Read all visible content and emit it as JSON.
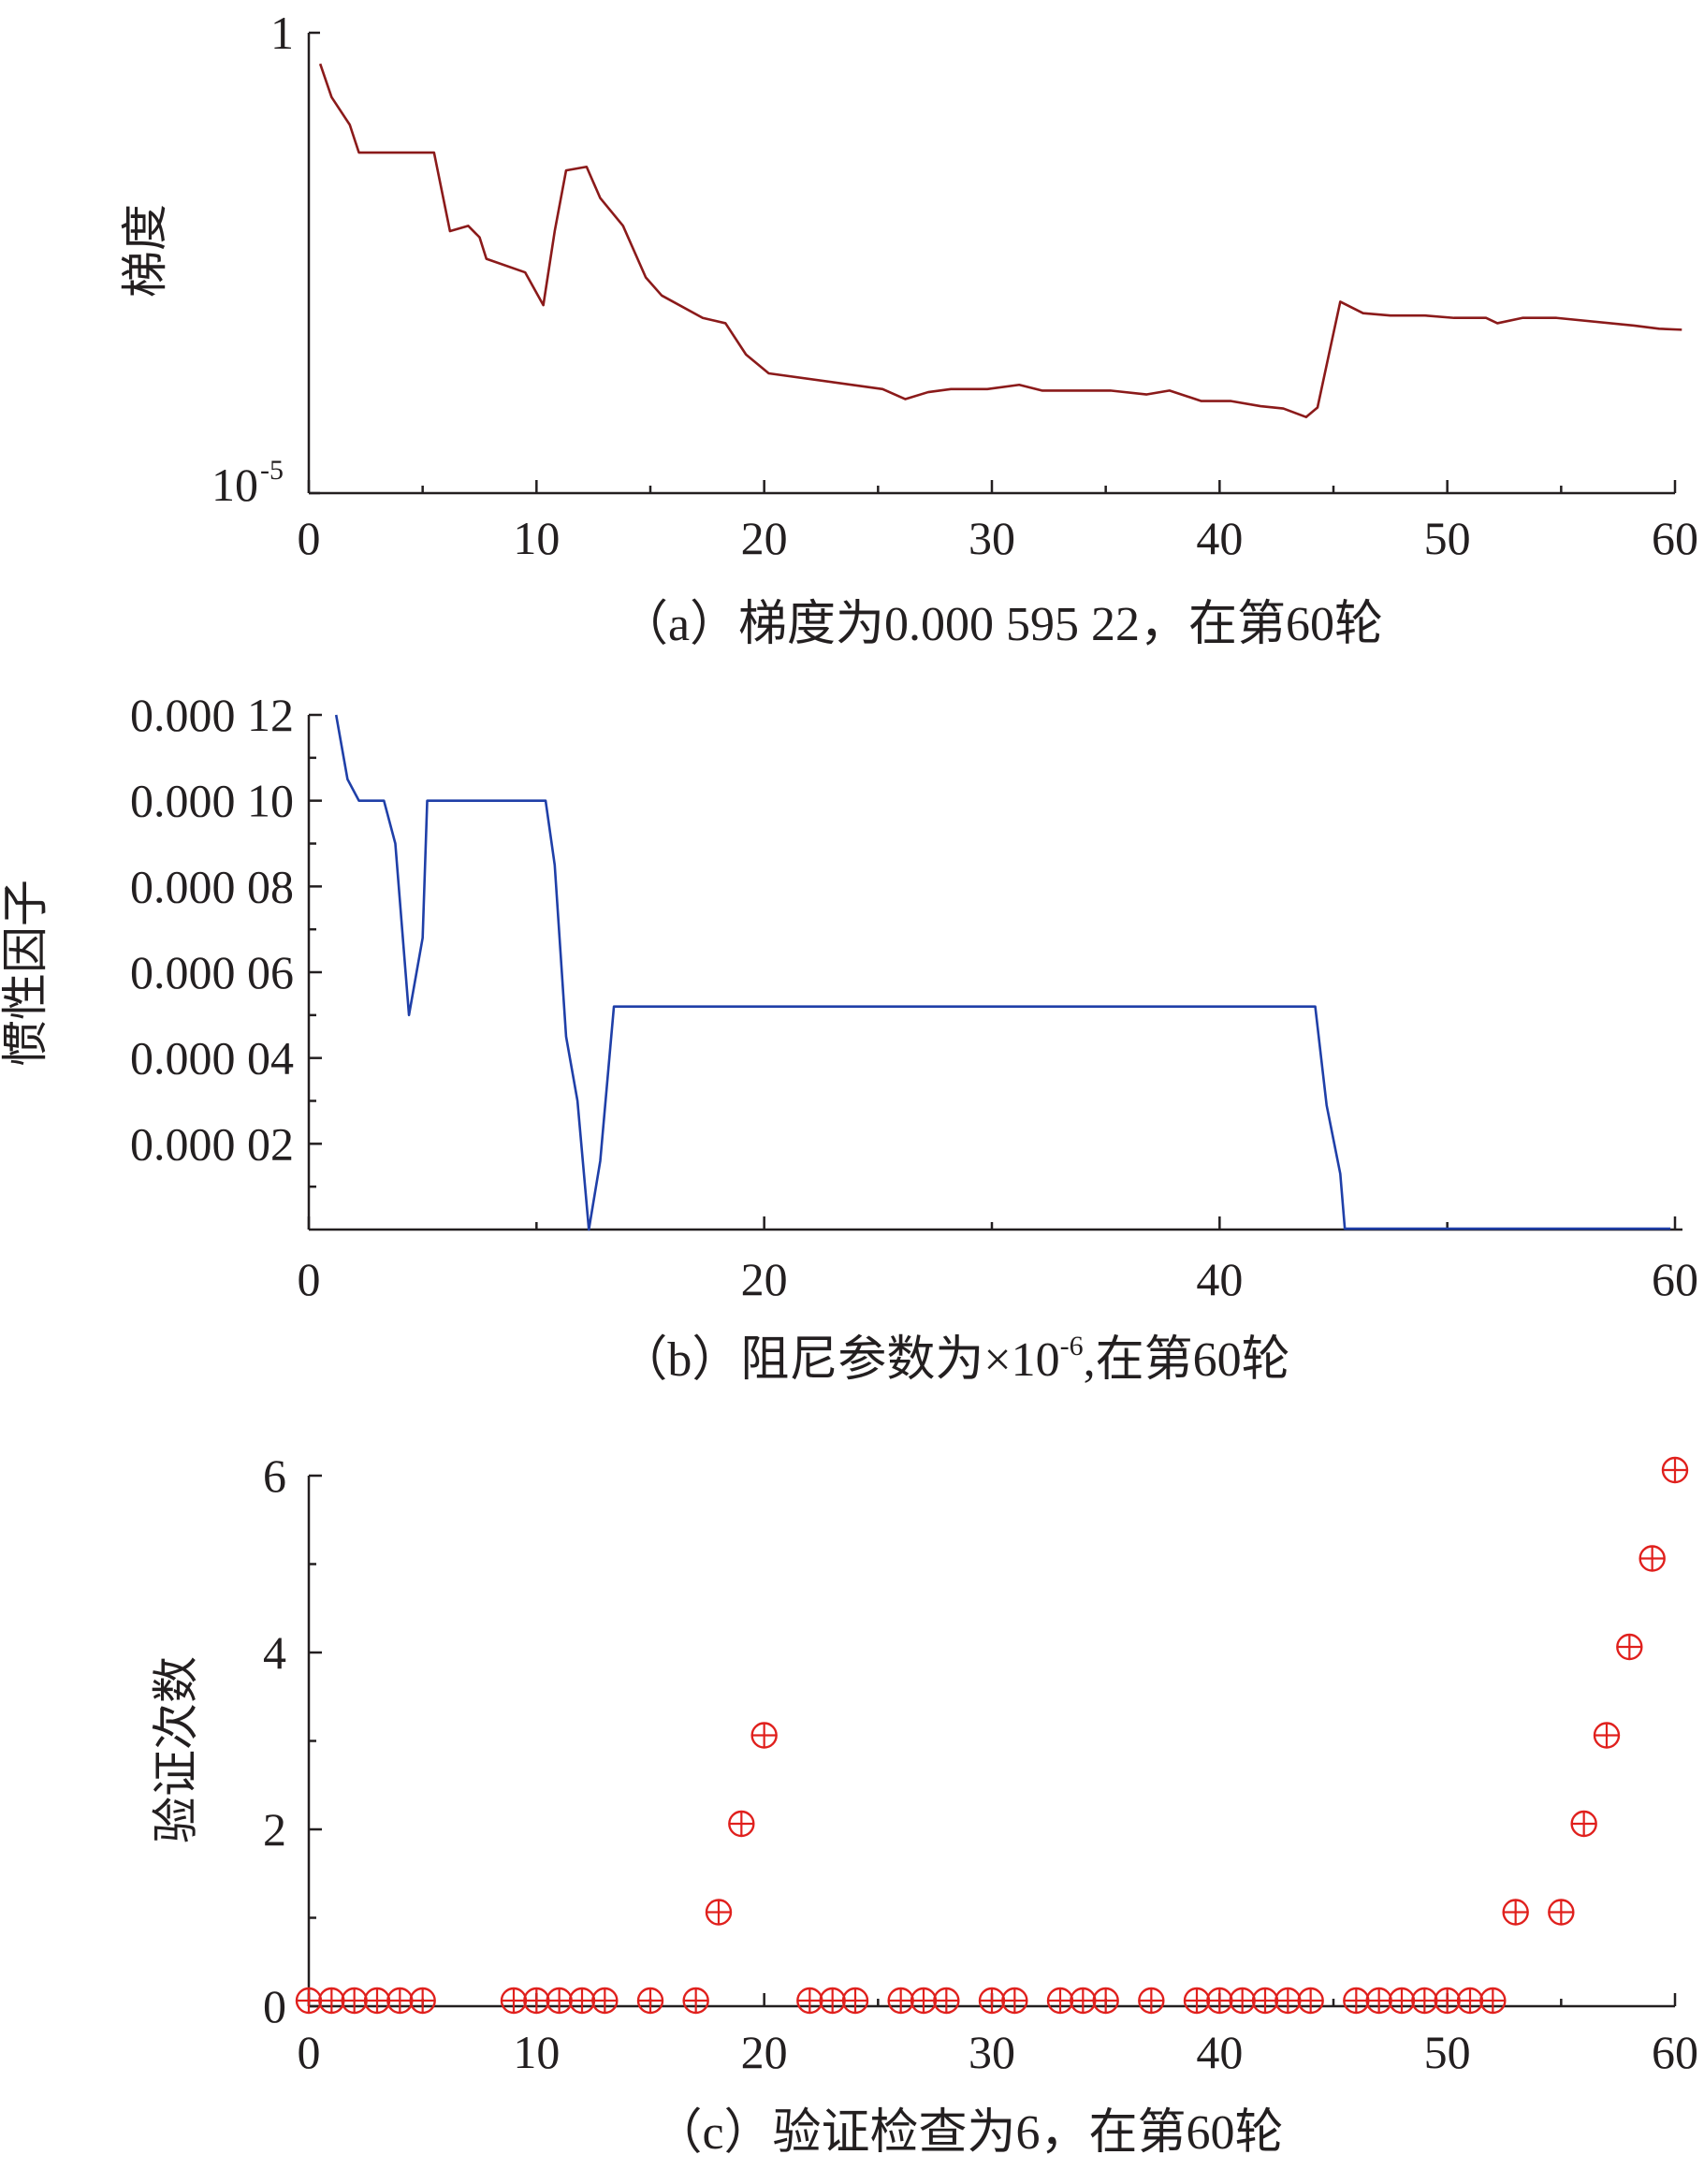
{
  "chart_data": [
    {
      "type": "line",
      "panel": "a",
      "ylabel": "梯度",
      "yscale": "log",
      "ylim": [
        1e-05,
        1
      ],
      "y_tick_labels": [
        "1",
        "10",
        "-5"
      ],
      "xlim": [
        0,
        60
      ],
      "x_ticks": [
        "0",
        "10",
        "20",
        "30",
        "40",
        "50",
        "60"
      ],
      "caption": "（a）梯度为0.000 595 22，在第60轮",
      "color": "#8b1a1a",
      "series": [
        {
          "x": [
            0.5,
            1,
            1.8,
            2.2,
            5.5,
            6.2,
            7,
            7.5,
            7.8,
            9.5,
            10.3,
            10.8,
            11.3,
            12.2,
            12.8,
            13.8,
            14.8,
            15.5,
            17.3,
            18.3,
            19.2,
            20.2,
            25.2,
            26.2,
            27.2,
            28.2,
            29.8,
            31.2,
            32.2,
            35.2,
            36.8,
            37.8,
            39.2,
            40.5,
            41.8,
            42.8,
            43.8,
            44.3,
            44.8,
            45.3,
            46.3,
            47.5,
            49,
            50.3,
            51.7,
            52.2,
            53.3,
            54.8,
            58.2,
            59.3,
            60.3
          ],
          "y": [
            0.46,
            0.2,
            0.1,
            0.05,
            0.05,
            0.007,
            0.008,
            0.006,
            0.0035,
            0.0025,
            0.0011,
            0.007,
            0.032,
            0.035,
            0.016,
            0.008,
            0.0022,
            0.0014,
            0.0008,
            0.0007,
            0.00032,
            0.0002,
            0.000135,
            0.000105,
            0.000125,
            0.000135,
            0.000135,
            0.00015,
            0.00013,
            0.00013,
            0.000118,
            0.00013,
            0.0001,
            0.0001,
            8.8e-05,
            8.3e-05,
            6.7e-05,
            8.5e-05,
            0.00032,
            0.0012,
            0.0009,
            0.00085,
            0.00085,
            0.0008,
            0.0008,
            0.0007,
            0.0008,
            0.0008,
            0.00066,
            0.00061,
            0.00059522
          ]
        }
      ]
    },
    {
      "type": "line",
      "panel": "b",
      "ylabel": "惯性因子",
      "ylim": [
        0,
        0.00012
      ],
      "y_ticks": [
        "0.000 02",
        "0.000 04",
        "0.000 06",
        "0.000 08",
        "0.000 10",
        "0.000 12"
      ],
      "xlim": [
        0,
        60
      ],
      "x_ticks": [
        "0",
        "20",
        "40",
        "60"
      ],
      "caption": "（b）阻尼参数为×10",
      "caption_sup": "-6",
      "caption_tail": ",在第60轮",
      "color": "#1f3fa8",
      "series": [
        {
          "x": [
            1.2,
            1.7,
            2.2,
            3.3,
            3.8,
            4.4,
            5,
            5.2,
            10.4,
            10.8,
            11.3,
            11.8,
            12.3,
            12.8,
            13.4,
            44.2,
            44.7,
            45.3,
            45.5,
            59.8
          ],
          "y": [
            0.00012,
            0.000105,
            0.0001,
            0.0001,
            9e-05,
            5e-05,
            6.8e-05,
            0.0001,
            0.0001,
            8.5e-05,
            4.5e-05,
            3e-05,
            0,
            1.6e-05,
            5.2e-05,
            5.2e-05,
            2.9e-05,
            1.3e-05,
            2e-07,
            2e-07
          ]
        }
      ]
    },
    {
      "type": "scatter",
      "panel": "c",
      "ylabel": "验证次数",
      "ylim": [
        0,
        6
      ],
      "y_ticks": [
        "0",
        "2",
        "4",
        "6"
      ],
      "xlim": [
        0,
        60
      ],
      "x_ticks": [
        "0",
        "10",
        "20",
        "30",
        "40",
        "50",
        "60"
      ],
      "caption": "（c）验证检查为6，在第60轮",
      "color": "#e0201d",
      "series": [
        {
          "x": [
            0,
            1,
            2,
            3,
            4,
            5,
            9,
            10,
            11,
            12,
            13,
            15,
            17,
            18,
            19,
            20,
            22,
            23,
            24,
            26,
            27,
            28,
            30,
            31,
            33,
            34,
            35,
            37,
            39,
            40,
            41,
            42,
            43,
            44,
            46,
            47,
            48,
            49,
            50,
            51,
            52,
            53,
            55,
            56,
            57,
            58,
            59,
            60
          ],
          "y": [
            0,
            0,
            0,
            0,
            0,
            0,
            0,
            0,
            0,
            0,
            0,
            0,
            0,
            1,
            2,
            3,
            0,
            0,
            0,
            0,
            0,
            0,
            0,
            0,
            0,
            0,
            0,
            0,
            0,
            0,
            0,
            0,
            0,
            0,
            0,
            0,
            0,
            0,
            0,
            0,
            0,
            1,
            1,
            2,
            3,
            4,
            5,
            6
          ]
        }
      ]
    }
  ]
}
